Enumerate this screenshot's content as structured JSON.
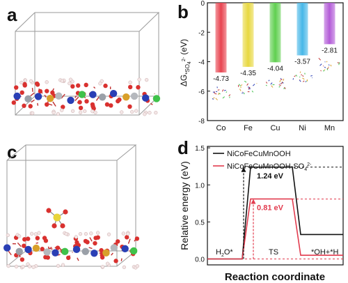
{
  "panel_letters": {
    "a": "a",
    "b": "b",
    "c": "c",
    "d": "d"
  },
  "watermark": "",
  "chart_data": [
    {
      "panel": "b",
      "type": "bar",
      "categories": [
        "Co",
        "Fe",
        "Cu",
        "Ni",
        "Mn"
      ],
      "values": [
        -4.73,
        -4.35,
        -4.04,
        -3.57,
        -2.81
      ],
      "value_labels": [
        "-4.73",
        "-4.35",
        "-4.04",
        "-3.57",
        "-2.81"
      ],
      "colors": [
        "#e8434f",
        "#e8d840",
        "#5fcf4f",
        "#46b7e8",
        "#b35cd8"
      ],
      "ylabel": "ΔG*SO4 2- (eV)",
      "ylabel_parts": {
        "delta": "ΔG",
        "sub": "*SO",
        "sub4": "4",
        "sup": "2-",
        "unit": " (eV)"
      },
      "ylim": [
        -8,
        0
      ],
      "yticks": [
        "0",
        "-2",
        "-4",
        "-6",
        "-8"
      ],
      "ytick_values": [
        0,
        -2,
        -4,
        -6,
        -8
      ]
    },
    {
      "panel": "d",
      "type": "line",
      "xlabel": "Reaction coordinate",
      "ylabel": "Relative energy (eV)",
      "ylim": [
        0,
        1.5
      ],
      "yticks": [
        "0.0",
        "0.5",
        "1.0",
        "1.5"
      ],
      "ytick_values": [
        0,
        0.5,
        1.0,
        1.5
      ],
      "stage_labels": {
        "start": "H2O*",
        "ts": "TS",
        "end": "*OH+*H"
      },
      "series": [
        {
          "name": "NiCoFeCuMnOOH",
          "color": "#111111",
          "levels": [
            0,
            1.24,
            0.33
          ]
        },
        {
          "name_main": "NiCoFeCuMnOOH-SO",
          "name_sub": "4",
          "name_sup": "2-",
          "color": "#e23b4e",
          "levels": [
            0,
            0.81,
            0.05
          ]
        }
      ],
      "annotations": [
        {
          "text": "1.24 eV",
          "value": 1.24,
          "color": "#111111"
        },
        {
          "text": "0.81 eV",
          "value": 0.81,
          "color": "#e23b4e"
        }
      ]
    }
  ]
}
